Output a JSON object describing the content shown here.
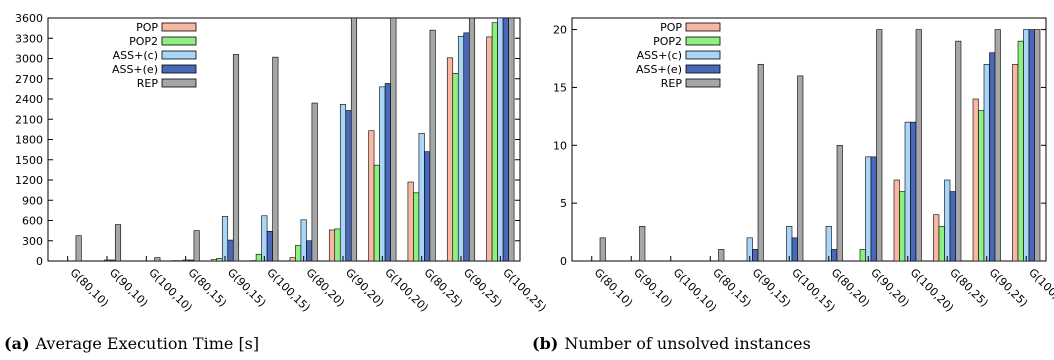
{
  "chart_data": [
    {
      "type": "bar",
      "caption_label": "(a)",
      "caption": "Average Execution Time [s]",
      "categories": [
        "G(80,10)",
        "G(90,10)",
        "G(100,10)",
        "G(80,15)",
        "G(90,15)",
        "G(100,15)",
        "G(80,20)",
        "G(90,20)",
        "G(100,20)",
        "G(80,25)",
        "G(90,25)",
        "G(100,25)"
      ],
      "ylim": [
        0,
        3600
      ],
      "yticks": [
        0,
        300,
        600,
        900,
        1200,
        1500,
        1800,
        2100,
        2400,
        2700,
        3000,
        3300,
        3600
      ],
      "legend_position": "top-left",
      "series": [
        {
          "name": "POP",
          "color": "#f7b7a3",
          "values": [
            0,
            0,
            0,
            5,
            20,
            5,
            50,
            460,
            1930,
            1170,
            3010,
            3320
          ]
        },
        {
          "name": "POP2",
          "color": "#8ef07f",
          "values": [
            0,
            0,
            0,
            5,
            40,
            100,
            230,
            475,
            1420,
            1010,
            2780,
            3530
          ]
        },
        {
          "name": "ASS+(c)",
          "color": "#a9d6f7",
          "values": [
            0,
            15,
            0,
            15,
            660,
            670,
            610,
            2320,
            2580,
            1890,
            3330,
            3600
          ]
        },
        {
          "name": "ASS+(e)",
          "color": "#4a68b8",
          "values": [
            0,
            15,
            0,
            15,
            310,
            440,
            300,
            2230,
            2630,
            1620,
            3380,
            3600
          ]
        },
        {
          "name": "REP",
          "color": "#a6a6a6",
          "values": [
            375,
            540,
            50,
            450,
            3060,
            3020,
            2340,
            3600,
            3600,
            3420,
            3600,
            3600
          ]
        }
      ]
    },
    {
      "type": "bar",
      "caption_label": "(b)",
      "caption": "Number of unsolved instances",
      "categories": [
        "G(80,10)",
        "G(90,10)",
        "G(100,10)",
        "G(80,15)",
        "G(90,15)",
        "G(100,15)",
        "G(80,20)",
        "G(90,20)",
        "G(100,20)",
        "G(80,25)",
        "G(90,25)",
        "G(100,25)"
      ],
      "ylim": [
        0,
        21
      ],
      "yticks": [
        0,
        5,
        10,
        15,
        20
      ],
      "legend_position": "top-left",
      "series": [
        {
          "name": "POP",
          "color": "#f7b7a3",
          "values": [
            0,
            0,
            0,
            0,
            0,
            0,
            0,
            0,
            7,
            4,
            14,
            17
          ]
        },
        {
          "name": "POP2",
          "color": "#8ef07f",
          "values": [
            0,
            0,
            0,
            0,
            0,
            0,
            0,
            1,
            6,
            3,
            13,
            19
          ]
        },
        {
          "name": "ASS+(c)",
          "color": "#a9d6f7",
          "values": [
            0,
            0,
            0,
            0,
            2,
            3,
            3,
            9,
            12,
            7,
            17,
            20
          ]
        },
        {
          "name": "ASS+(e)",
          "color": "#4a68b8",
          "values": [
            0,
            0,
            0,
            0,
            1,
            2,
            1,
            9,
            12,
            6,
            18,
            20
          ]
        },
        {
          "name": "REP",
          "color": "#a6a6a6",
          "values": [
            2,
            3,
            0,
            1,
            17,
            16,
            10,
            20,
            20,
            19,
            20,
            20
          ]
        }
      ]
    }
  ]
}
